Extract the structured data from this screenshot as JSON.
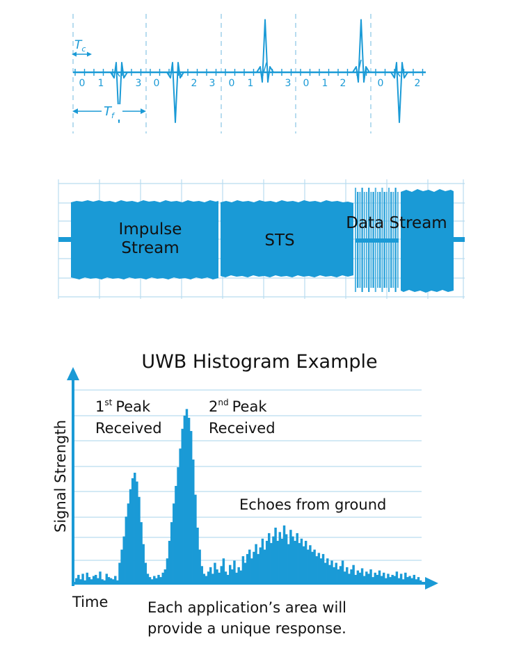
{
  "colors": {
    "accent": "#1a9ad6",
    "grid": "#b9dcef",
    "text": "#111111",
    "white": "#ffffff"
  },
  "pulse_diagram": {
    "tc_label": "T",
    "tc_sub": "c",
    "tf_label": "T",
    "tf_sub": "f",
    "chip_numbers": [
      "0",
      "1",
      "3",
      "0",
      "2",
      "3",
      "0",
      "1",
      "3",
      "0",
      "1",
      "2",
      "0",
      "2"
    ]
  },
  "packet_diagram": {
    "impulse_line1": "Impulse",
    "impulse_line2": "Stream",
    "sts": "STS",
    "data_stream": "Data Stream"
  },
  "histogram": {
    "title": "UWB Histogram Example",
    "ylabel": "Signal Strength",
    "xlabel": "Time",
    "peak1_num": "1",
    "peak1_sup": "st",
    "peak1_word": "Peak",
    "peak1_line2": "Received",
    "peak2_num": "2",
    "peak2_sup": "nd",
    "peak2_word": "Peak",
    "peak2_line2": "Received",
    "echoes": "Echoes from ground",
    "caption_line1": "Each application’s area will",
    "caption_line2": "provide a unique response."
  }
}
